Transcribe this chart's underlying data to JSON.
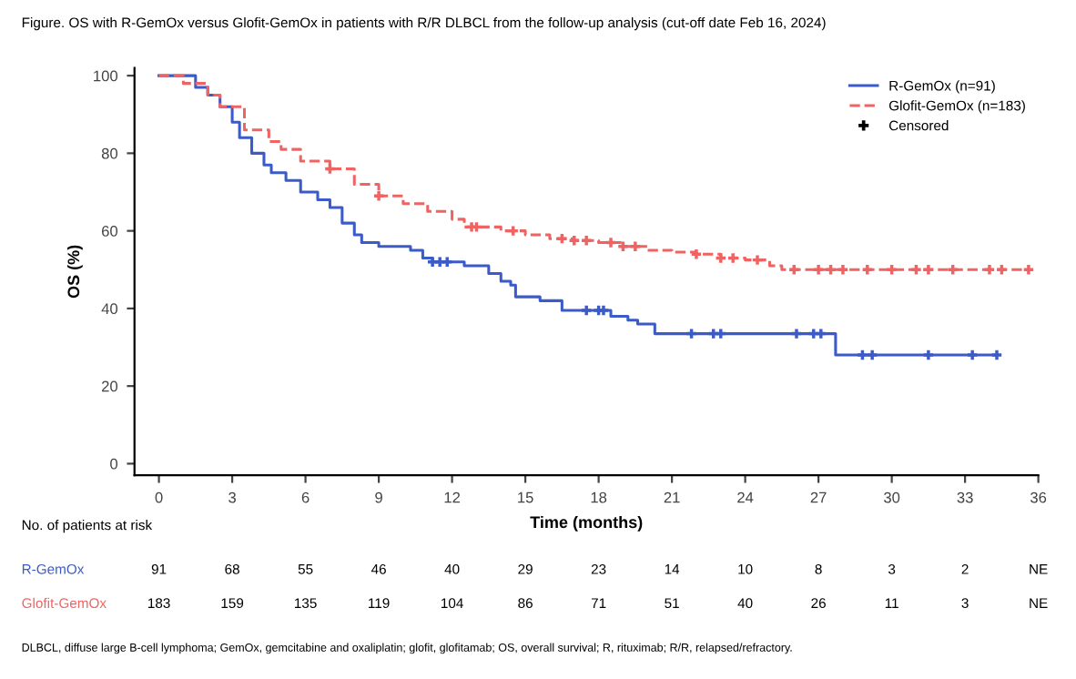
{
  "chart_data": {
    "type": "step",
    "title": "Figure. OS with R-GemOx versus Glofit-GemOx in patients with R/R DLBCL from the follow-up analysis (cut-off date Feb 16, 2024)",
    "xlabel": "Time (months)",
    "ylabel": "OS (%)",
    "xlim": [
      -1,
      36
    ],
    "ylim": [
      -3,
      102
    ],
    "xticks": [
      0,
      3,
      6,
      9,
      12,
      15,
      18,
      21,
      24,
      27,
      30,
      33,
      36
    ],
    "yticks": [
      0,
      20,
      40,
      60,
      80,
      100
    ],
    "grid": false,
    "legend": "top right",
    "series": [
      {
        "name": "R-GemOx (n=91)",
        "color": "#3b5bc8",
        "line_style": "solid",
        "x": [
          0,
          1.5,
          2,
          2.5,
          3,
          3.3,
          3.8,
          4.3,
          4.6,
          5.2,
          5.8,
          6.5,
          7,
          7.5,
          8,
          8.3,
          9,
          10.3,
          10.8,
          11.2,
          12.5,
          13.5,
          14,
          14.4,
          14.6,
          15.6,
          16.5,
          18.5,
          19.2,
          19.6,
          20.3,
          27.7,
          34.3
        ],
        "values": [
          100,
          97,
          95,
          92,
          88,
          84,
          80,
          77,
          75,
          73,
          70,
          68,
          66,
          62,
          59,
          57,
          56,
          55,
          53,
          52,
          51,
          49,
          47,
          46,
          43,
          42,
          39.5,
          38,
          37,
          36,
          33.5,
          28,
          28
        ]
      },
      {
        "name": "Glofit-GemOx (n=183)",
        "color": "#ef6363",
        "line_style": "dashed",
        "x": [
          0,
          1,
          2,
          2.5,
          3.5,
          4.5,
          5,
          5.8,
          7,
          8,
          9,
          10,
          11,
          12,
          12.5,
          14,
          15,
          16,
          17,
          18,
          19,
          20,
          21,
          22,
          23,
          24,
          25,
          25.5,
          35.6
        ],
        "values": [
          100,
          98,
          95,
          92,
          86,
          83,
          81,
          78,
          76,
          72,
          69,
          67,
          65,
          63,
          61,
          60,
          59,
          58,
          57.5,
          57,
          56,
          55,
          54.5,
          54,
          53,
          52.5,
          51,
          50,
          50
        ]
      },
      {
        "type": "scatter",
        "marker": "cross",
        "color": "#000000",
        "x": [
          11.2,
          11.5,
          11.8,
          17.5,
          18,
          18.2,
          21.8,
          22.7,
          23.0,
          26.1,
          26.8,
          27.1,
          28.8,
          29.2,
          31.5,
          33.3,
          34.3,
          7,
          9,
          12.8,
          13,
          14.5,
          16.5,
          17,
          17.5,
          18.5,
          19,
          19.5,
          22,
          23,
          23.5,
          24.5,
          26,
          27,
          27.5,
          28,
          29,
          30,
          31,
          31.5,
          32.5,
          34,
          34.5,
          35.6
        ],
        "values": [
          52,
          52,
          52,
          39.5,
          39.5,
          39.5,
          33.5,
          33.5,
          33.5,
          33.5,
          33.5,
          33.5,
          28,
          28,
          28,
          28,
          28,
          76,
          69,
          61,
          61,
          60,
          58,
          57.5,
          57.5,
          57,
          56,
          56,
          54,
          53,
          53,
          52.5,
          50,
          50,
          50,
          50,
          50,
          50,
          50,
          50,
          50,
          50,
          50,
          50
        ],
        "colors": [
          "#3b5bc8",
          "#3b5bc8",
          "#3b5bc8",
          "#3b5bc8",
          "#3b5bc8",
          "#3b5bc8",
          "#3b5bc8",
          "#3b5bc8",
          "#3b5bc8",
          "#3b5bc8",
          "#3b5bc8",
          "#3b5bc8",
          "#3b5bc8",
          "#3b5bc8",
          "#3b5bc8",
          "#3b5bc8",
          "#3b5bc8",
          "#ef6363",
          "#ef6363",
          "#ef6363",
          "#ef6363",
          "#ef6363",
          "#ef6363",
          "#ef6363",
          "#ef6363",
          "#ef6363",
          "#ef6363",
          "#ef6363",
          "#ef6363",
          "#ef6363",
          "#ef6363",
          "#ef6363",
          "#ef6363",
          "#ef6363",
          "#ef6363",
          "#ef6363",
          "#ef6363",
          "#ef6363",
          "#ef6363",
          "#ef6363",
          "#ef6363",
          "#ef6363",
          "#ef6363",
          "#ef6363"
        ]
      }
    ],
    "annotations": [
      "No. of patients at risk",
      "R-GemOx",
      "91",
      "68",
      "55",
      "46",
      "40",
      "29",
      "23",
      "14",
      "10",
      "8",
      "3",
      "2",
      "NE",
      "Glofit-GemOx",
      "183",
      "159",
      "135",
      "119",
      "104",
      "86",
      "71",
      "51",
      "40",
      "26",
      "11",
      "3",
      "NE",
      "DLBCL, diffuse large B-cell lymphoma; GemOx, gemcitabine and oxaliplatin; glofit, glofitamab; OS, overall survival; R, rituximab; R/R, relapsed/refractory.",
      "Censored"
    ]
  }
}
